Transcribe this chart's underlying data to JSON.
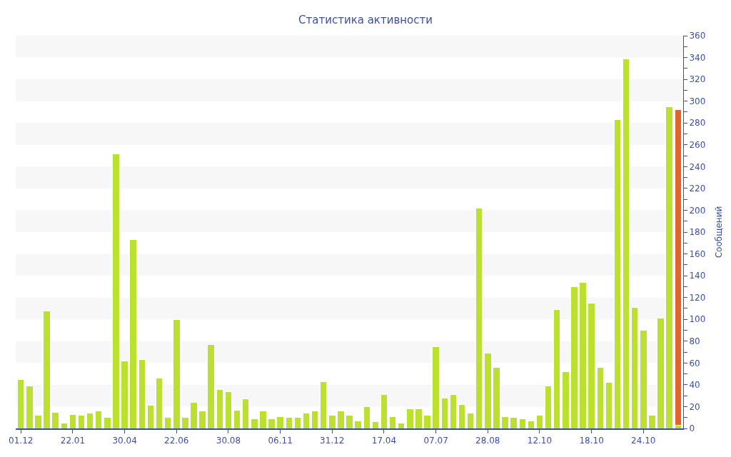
{
  "chart_data": {
    "type": "bar",
    "title": "Статистика активности",
    "ylabel": "Сообщений",
    "stacked": true,
    "categories": [
      "01.12",
      null,
      null,
      null,
      null,
      null,
      "22.01",
      null,
      null,
      null,
      null,
      null,
      "30.04",
      null,
      null,
      null,
      null,
      null,
      "22.06",
      null,
      null,
      null,
      null,
      null,
      "30.08",
      null,
      null,
      null,
      null,
      null,
      "06.11",
      null,
      null,
      null,
      null,
      null,
      "31.12",
      null,
      null,
      null,
      null,
      null,
      "17.04",
      null,
      null,
      null,
      null,
      null,
      "07.07",
      null,
      null,
      null,
      null,
      null,
      "28.08",
      null,
      null,
      null,
      null,
      null,
      "12.10",
      null,
      null,
      null,
      null,
      null,
      "18.10",
      null,
      null,
      null,
      null,
      null,
      "24.10",
      null,
      null,
      null,
      null
    ],
    "series": [
      {
        "color": "#bce030",
        "values": [
          45,
          39,
          12,
          108,
          15,
          5,
          13,
          12,
          14,
          16,
          10,
          252,
          62,
          173,
          63,
          21,
          46,
          10,
          100,
          10,
          24,
          16,
          77,
          36,
          34,
          17,
          27,
          9,
          16,
          9,
          11,
          10,
          10,
          14,
          16,
          43,
          12,
          16,
          12,
          7,
          20,
          6,
          31,
          11,
          5,
          18,
          18,
          12,
          75,
          28,
          31,
          22,
          14,
          202,
          69,
          56,
          11,
          10,
          9,
          7,
          12,
          39,
          109,
          52,
          130,
          134,
          115,
          56,
          42,
          283,
          339,
          111,
          90,
          12,
          101,
          295,
          3
        ]
      },
      {
        "color": "#e3632d",
        "values": [
          null,
          null,
          null,
          null,
          null,
          null,
          null,
          null,
          null,
          null,
          null,
          null,
          null,
          null,
          null,
          null,
          null,
          null,
          null,
          null,
          null,
          null,
          null,
          null,
          null,
          null,
          null,
          null,
          null,
          null,
          null,
          null,
          null,
          null,
          null,
          null,
          null,
          null,
          null,
          null,
          null,
          null,
          null,
          null,
          null,
          null,
          null,
          null,
          null,
          null,
          null,
          null,
          null,
          null,
          null,
          null,
          null,
          null,
          null,
          null,
          null,
          null,
          null,
          null,
          null,
          null,
          null,
          null,
          null,
          null,
          null,
          null,
          null,
          null,
          null,
          null,
          289
        ]
      }
    ],
    "ylim": [
      0,
      360
    ],
    "yticks": [
      0,
      {
        "value": 10,
        "label": null
      },
      20,
      {
        "value": 30,
        "label": null
      },
      40,
      {
        "value": 50,
        "label": null
      },
      60,
      {
        "value": 70,
        "label": null
      },
      80,
      {
        "value": 90,
        "label": null
      },
      100,
      {
        "value": 110,
        "label": null
      },
      120,
      {
        "value": 130,
        "label": null
      },
      140,
      {
        "value": 150,
        "label": null
      },
      160,
      {
        "value": 170,
        "label": null
      },
      180,
      {
        "value": 190,
        "label": null
      },
      200,
      {
        "value": 210,
        "label": null
      },
      220,
      {
        "value": 230,
        "label": null
      },
      240,
      {
        "value": 250,
        "label": null
      },
      260,
      {
        "value": 270,
        "label": null
      },
      280,
      {
        "value": 290,
        "label": null
      },
      300,
      {
        "value": 310,
        "label": null
      },
      320,
      {
        "value": 330,
        "label": null
      },
      340,
      {
        "value": 350,
        "label": null
      },
      360
    ],
    "bands": [
      {
        "axis": "y",
        "from": 20,
        "to": 40,
        "color": "#f7f7f7"
      },
      {
        "axis": "y",
        "from": 60,
        "to": 80,
        "color": "#f7f7f7"
      },
      {
        "axis": "y",
        "from": 100,
        "to": 120,
        "color": "#f7f7f7"
      },
      {
        "axis": "y",
        "from": 140,
        "to": 160,
        "color": "#f7f7f7"
      },
      {
        "axis": "y",
        "from": 180,
        "to": 200,
        "color": "#f7f7f7"
      },
      {
        "axis": "y",
        "from": 220,
        "to": 240,
        "color": "#f7f7f7"
      },
      {
        "axis": "y",
        "from": 260,
        "to": 280,
        "color": "#f7f7f7"
      },
      {
        "axis": "y",
        "from": 300,
        "to": 320,
        "color": "#f7f7f7"
      },
      {
        "axis": "y",
        "from": 340,
        "to": 360,
        "color": "#f7f7f7"
      }
    ],
    "grid": false
  }
}
